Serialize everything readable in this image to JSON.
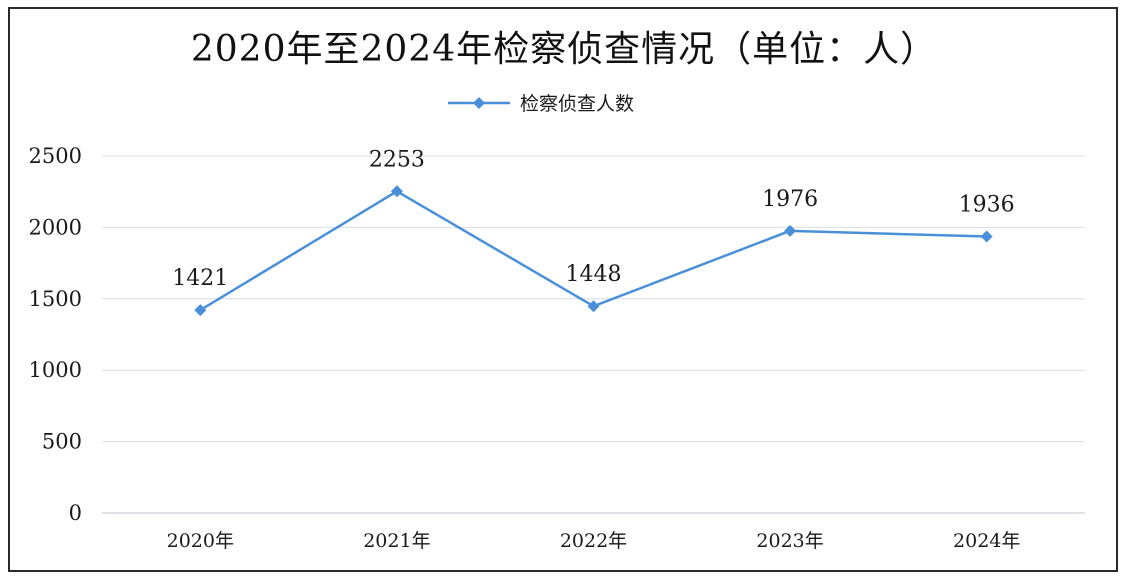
{
  "chart_data": {
    "type": "line",
    "title": "2020年至2024年检察侦查情况（单位：人）",
    "categories": [
      "2020年",
      "2021年",
      "2022年",
      "2023年",
      "2024年"
    ],
    "series": [
      {
        "name": "检察侦查人数",
        "values": [
          1421,
          2253,
          1448,
          1976,
          1936
        ],
        "color": "#4a90d9"
      }
    ],
    "ylim": [
      0,
      2500
    ],
    "yticks": [
      0,
      500,
      1000,
      1500,
      2000,
      2500
    ],
    "grid": true,
    "legend_position": "top-center",
    "data_labels": true
  }
}
